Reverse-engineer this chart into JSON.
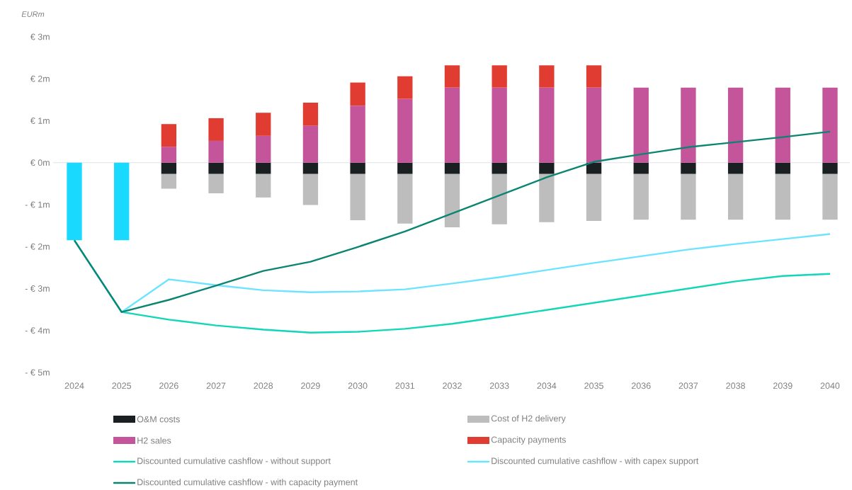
{
  "chart_data": {
    "type": "bar",
    "stacked": true,
    "ylabel": "EURm",
    "categories": [
      "2024",
      "2025",
      "2026",
      "2027",
      "2028",
      "2029",
      "2030",
      "2031",
      "2032",
      "2033",
      "2034",
      "2035",
      "2036",
      "2037",
      "2038",
      "2039",
      "2040"
    ],
    "ylim": [
      -5,
      3
    ],
    "yticks": [
      {
        "value": -5,
        "label": "- € 5m"
      },
      {
        "value": -4,
        "label": "- € 4m"
      },
      {
        "value": -3,
        "label": "- € 3m"
      },
      {
        "value": -2,
        "label": "- € 2m"
      },
      {
        "value": -1,
        "label": "- € 1m"
      },
      {
        "value": 0,
        "label": "€ 0m"
      },
      {
        "value": 1,
        "label": "€ 1m"
      },
      {
        "value": 2,
        "label": "€ 2m"
      },
      {
        "value": 3,
        "label": "€ 3m"
      }
    ],
    "ref_lines": [
      {
        "axis": "y",
        "value": 0,
        "color": "#dde3ea"
      }
    ],
    "grid": false,
    "legend": "bottom",
    "series": [
      {
        "color": "#19d9ff",
        "values": [
          -1.85,
          -1.85,
          null,
          null,
          null,
          null,
          null,
          null,
          null,
          null,
          null,
          null,
          null,
          null,
          null,
          null,
          null
        ]
      },
      {
        "name": "O&M costs",
        "color": "#1a1f22",
        "values": [
          null,
          null,
          -0.27,
          -0.27,
          -0.27,
          -0.27,
          -0.27,
          -0.27,
          -0.27,
          -0.27,
          -0.27,
          -0.27,
          -0.27,
          -0.27,
          -0.27,
          -0.27,
          -0.27
        ]
      },
      {
        "name": "Cost of H2 delivery",
        "color": "#bdbdbd",
        "values": [
          null,
          null,
          -0.35,
          -0.46,
          -0.56,
          -0.74,
          -1.1,
          -1.18,
          -1.27,
          -1.2,
          -1.15,
          -1.12,
          -1.09,
          -1.09,
          -1.09,
          -1.09,
          -1.09
        ]
      },
      {
        "name": "H2 sales",
        "color": "#c4559a",
        "values": [
          null,
          null,
          0.38,
          0.52,
          0.64,
          0.88,
          1.36,
          1.52,
          1.79,
          1.79,
          1.79,
          1.79,
          1.79,
          1.79,
          1.79,
          1.79,
          1.79
        ]
      },
      {
        "name": "Capacity payments",
        "color": "#e03c31",
        "values": [
          null,
          null,
          0.54,
          0.54,
          0.55,
          0.55,
          0.55,
          0.54,
          0.53,
          0.53,
          0.53,
          0.53,
          null,
          null,
          null,
          null,
          null
        ]
      },
      {
        "type": "line",
        "name": "Discounted cumulative cashflow - without support",
        "color": "#12d6b8",
        "values": [
          -1.85,
          -3.56,
          -3.74,
          -3.88,
          -3.98,
          -4.05,
          -4.03,
          -3.96,
          -3.84,
          -3.68,
          -3.51,
          -3.34,
          -3.17,
          -3.0,
          -2.83,
          -2.7,
          -2.65
        ]
      },
      {
        "type": "line",
        "name": "Discounted cumulative cashflow - with capex support",
        "color": "#6de4ff",
        "values": [
          -1.85,
          -3.56,
          -2.78,
          -2.92,
          -3.04,
          -3.09,
          -3.07,
          -3.02,
          -2.88,
          -2.73,
          -2.56,
          -2.39,
          -2.23,
          -2.07,
          -1.94,
          -1.82,
          -1.7
        ]
      },
      {
        "type": "line",
        "name": "Discounted cumulative cashflow - with capacity payment",
        "color": "#0b8572",
        "values": [
          -1.85,
          -3.56,
          -3.27,
          -2.93,
          -2.58,
          -2.36,
          -2.01,
          -1.64,
          -1.21,
          -0.78,
          -0.35,
          0.02,
          0.2,
          0.37,
          0.49,
          0.61,
          0.74
        ]
      }
    ]
  }
}
